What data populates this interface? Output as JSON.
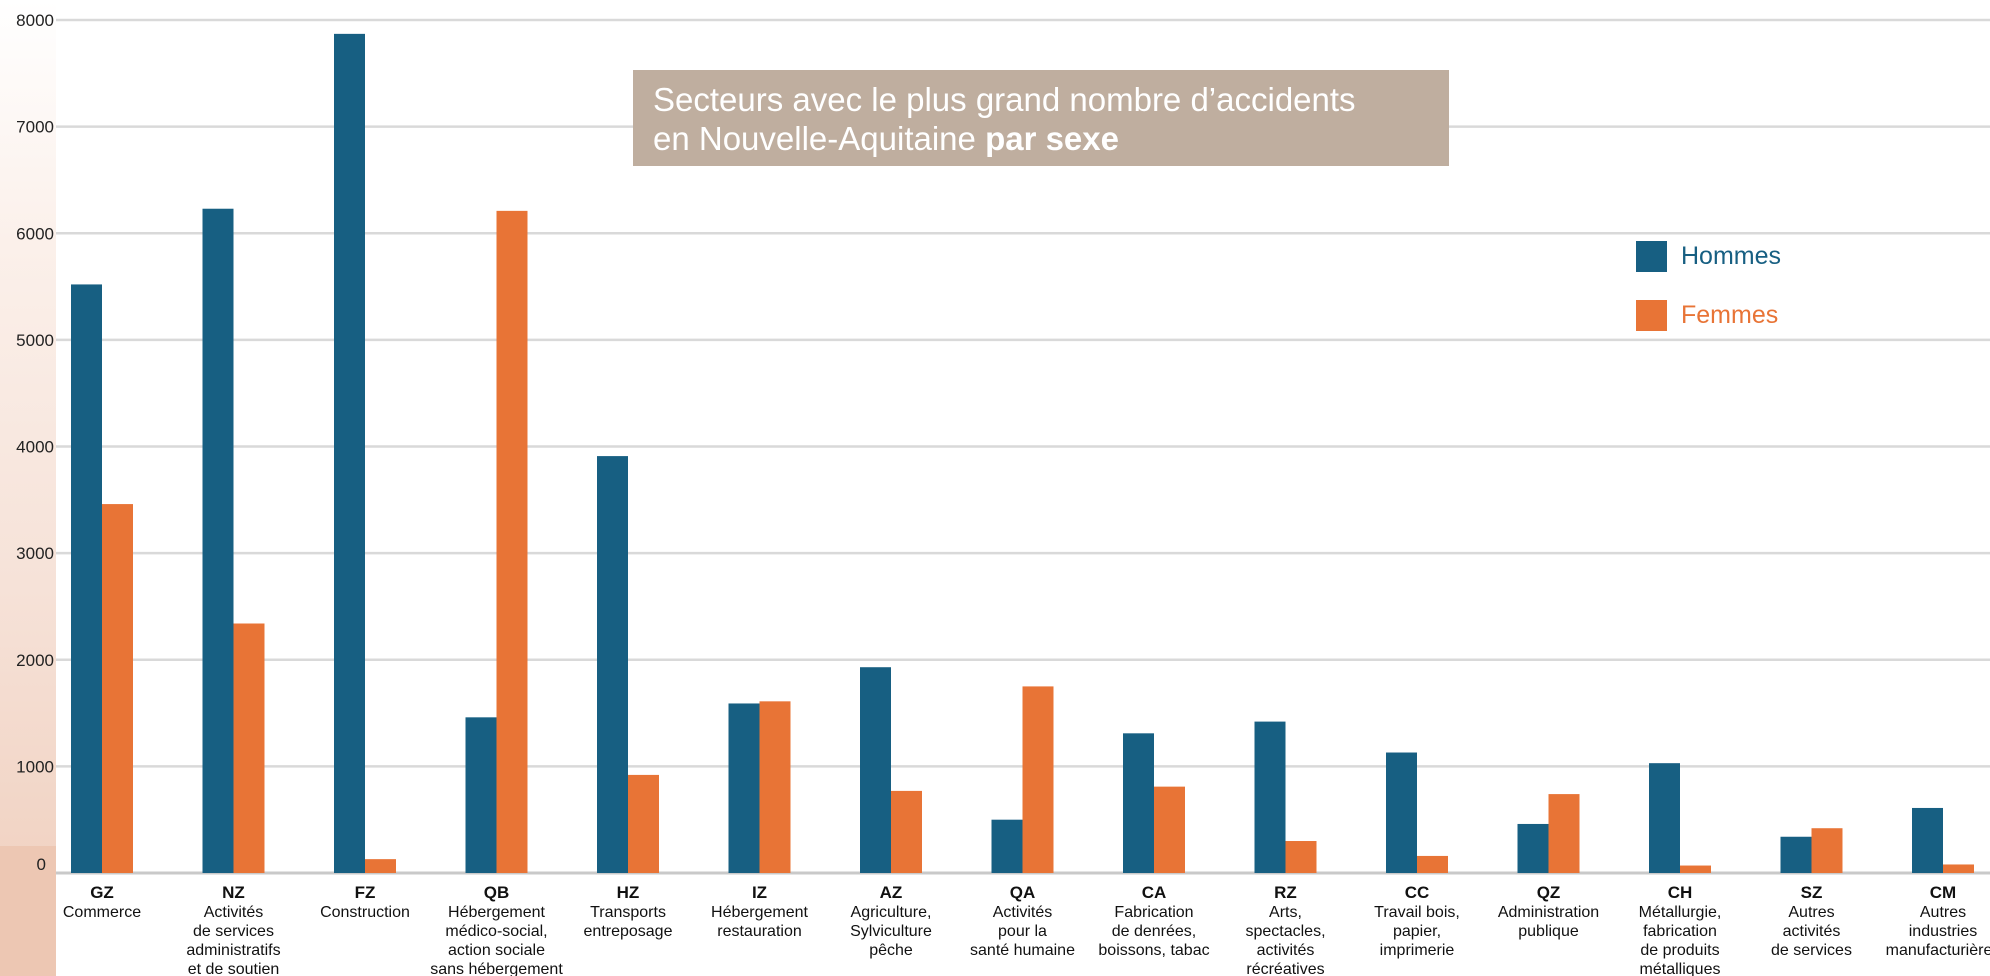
{
  "chart_data": {
    "type": "bar",
    "title_line1": "Secteurs avec le plus grand nombre d’accidents",
    "title_line2": "en Nouvelle-Aquitaine",
    "title_bold": "par sexe",
    "xlabel": "",
    "ylabel": "",
    "ylim": [
      0,
      8000
    ],
    "yticks": [
      0,
      1000,
      2000,
      3000,
      4000,
      5000,
      6000,
      7000,
      8000
    ],
    "grid": true,
    "legend_position": "top-right",
    "categories": [
      {
        "code": "GZ",
        "label": [
          "Commerce"
        ]
      },
      {
        "code": "NZ",
        "label": [
          "Activités",
          "de services",
          "administratifs",
          "et de soutien"
        ]
      },
      {
        "code": "FZ",
        "label": [
          "Construction"
        ]
      },
      {
        "code": "QB",
        "label": [
          "Hébergement",
          "médico-social,",
          "action sociale",
          "sans hébergement"
        ]
      },
      {
        "code": "HZ",
        "label": [
          "Transports",
          "entreposage"
        ]
      },
      {
        "code": "IZ",
        "label": [
          "Hébergement",
          "restauration"
        ]
      },
      {
        "code": "AZ",
        "label": [
          "Agriculture,",
          "Sylviculture",
          "pêche"
        ]
      },
      {
        "code": "QA",
        "label": [
          "Activités",
          "pour la",
          "santé humaine"
        ]
      },
      {
        "code": "CA",
        "label": [
          "Fabrication",
          "de denrées,",
          "boissons, tabac"
        ]
      },
      {
        "code": "RZ",
        "label": [
          "Arts,",
          "spectacles,",
          "activités",
          "récréatives"
        ]
      },
      {
        "code": "CC",
        "label": [
          "Travail bois,",
          "papier,",
          "imprimerie"
        ]
      },
      {
        "code": "QZ",
        "label": [
          "Administration",
          "publique"
        ]
      },
      {
        "code": "CH",
        "label": [
          "Métallurgie,",
          "fabrication",
          "de produits",
          "métalliques"
        ]
      },
      {
        "code": "SZ",
        "label": [
          "Autres",
          "activités",
          "de services"
        ]
      },
      {
        "code": "CM",
        "label": [
          "Autres",
          "industries",
          "manufacturières"
        ]
      }
    ],
    "series": [
      {
        "name": "Hommes",
        "color": "#175f82",
        "values": [
          5520,
          6230,
          7870,
          1460,
          3910,
          1590,
          1930,
          500,
          1310,
          1420,
          1130,
          460,
          1030,
          340,
          610
        ]
      },
      {
        "name": "Femmes",
        "color": "#e87436",
        "values": [
          3460,
          2340,
          130,
          6210,
          920,
          1610,
          770,
          1750,
          810,
          300,
          160,
          740,
          70,
          420,
          80
        ]
      }
    ]
  }
}
